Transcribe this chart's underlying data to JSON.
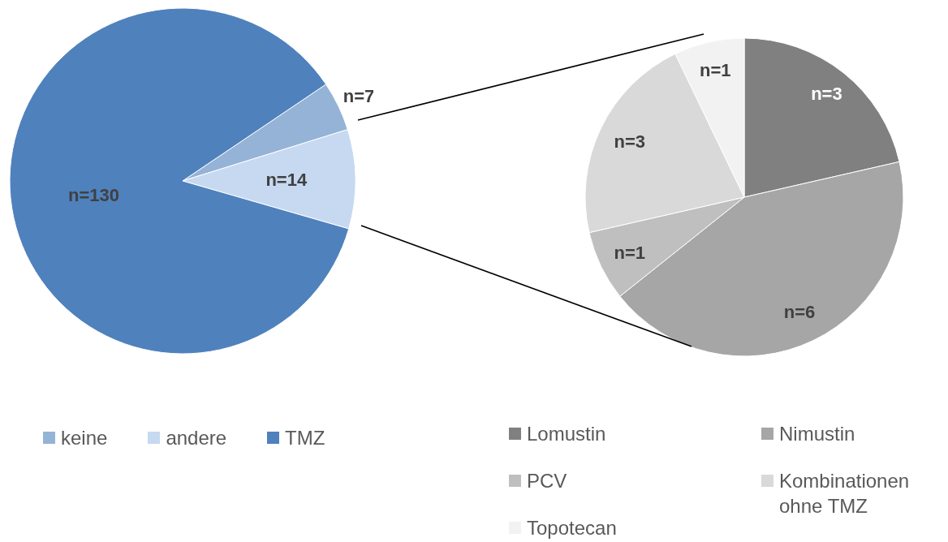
{
  "chart_data": [
    {
      "type": "pie",
      "categories": [
        "keine",
        "andere",
        "TMZ"
      ],
      "values": [
        7,
        14,
        130
      ],
      "colors": [
        "#95b3d7",
        "#c6d9f1",
        "#4f81bd"
      ],
      "value_labels": [
        "n=7",
        "n=14",
        "n=130"
      ],
      "legend": "bottom"
    },
    {
      "type": "pie",
      "categories": [
        "Lomustin",
        "Nimustin",
        "PCV",
        "Kombinationen ohne TMZ",
        "Topotecan"
      ],
      "values": [
        3,
        6,
        1,
        3,
        1
      ],
      "colors": [
        "#808080",
        "#a6a6a6",
        "#bfbfbf",
        "#d9d9d9",
        "#f2f2f2"
      ],
      "value_labels": [
        "n=3",
        "n=6",
        "n=1",
        "n=3",
        "n=1"
      ],
      "legend": "bottom"
    }
  ]
}
